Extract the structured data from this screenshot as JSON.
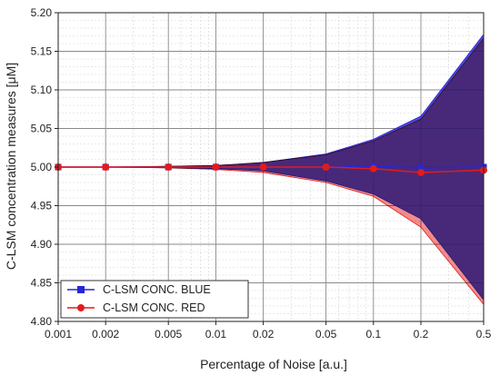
{
  "chart_data": {
    "type": "line",
    "xlabel": "Percentage of Noise [a.u.]",
    "ylabel": "C-LSM concentration measures [μM]",
    "x_scale": "log",
    "grid": true,
    "legend_position": "bottom-left",
    "ylim": [
      4.8,
      5.2
    ],
    "xlim": [
      0.001,
      0.5
    ],
    "x_ticks": [
      "0.001",
      "0.002",
      "0.005",
      "0.01",
      "0.02",
      "0.05",
      "0.1",
      "0.2",
      "0.5"
    ],
    "y_ticks": [
      "4.80",
      "4.85",
      "4.90",
      "4.95",
      "5.00",
      "5.05",
      "5.10",
      "5.15",
      "5.20"
    ],
    "x": [
      0.001,
      0.002,
      0.005,
      0.01,
      0.02,
      0.05,
      0.1,
      0.2,
      0.5
    ],
    "series": [
      {
        "name": "C-LSM CONC. BLUE",
        "color": "#2626d9",
        "marker": "square",
        "values": [
          5.0,
          5.0,
          5.0,
          5.0,
          5.0,
          5.0,
          5.001,
          4.999,
          5.0
        ],
        "band_upper": [
          5.0,
          5.0,
          5.001,
          5.002,
          5.006,
          5.017,
          5.036,
          5.066,
          5.172
        ],
        "band_lower": [
          5.0,
          5.0,
          4.999,
          4.998,
          4.995,
          4.982,
          4.965,
          4.933,
          4.828
        ],
        "band_color": "#2b2bd8"
      },
      {
        "name": "C-LSM CONC. RED",
        "color": "#e31b1b",
        "marker": "circle",
        "values": [
          5.0,
          5.0,
          5.0,
          5.0,
          5.0,
          5.0,
          4.998,
          4.993,
          4.996
        ],
        "band_upper": [
          5.0,
          5.0,
          5.001,
          5.002,
          5.006,
          5.016,
          5.034,
          5.062,
          5.167
        ],
        "band_lower": [
          5.0,
          5.0,
          4.999,
          4.997,
          4.993,
          4.98,
          4.962,
          4.922,
          4.822
        ],
        "band_color": "#ee5a5a"
      }
    ]
  }
}
